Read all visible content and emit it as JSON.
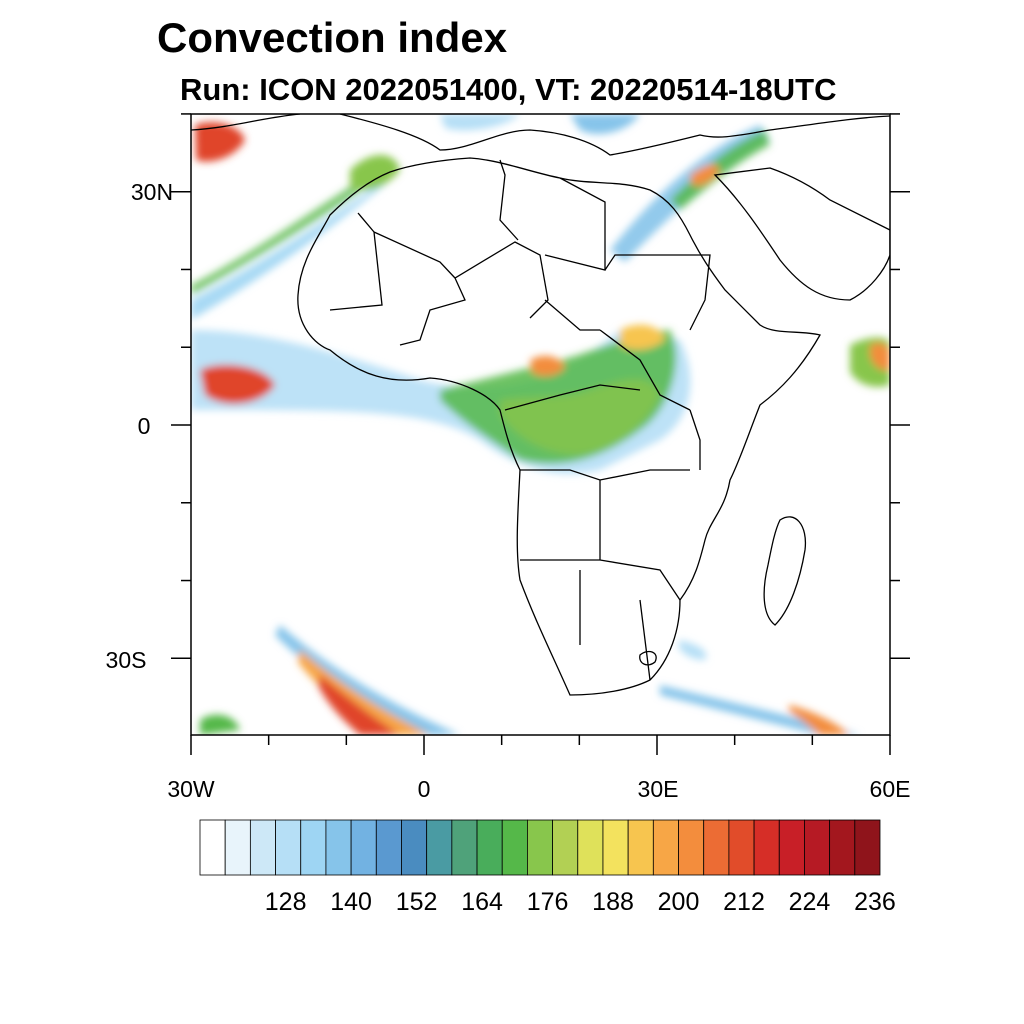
{
  "title": "Convection index",
  "subtitle": "Run: ICON 2022051400,  VT: 20220514-18UTC",
  "axes": {
    "lat_labels": [
      "30N",
      "0",
      "30S"
    ],
    "lon_labels": [
      "30W",
      "0",
      "30E",
      "60E"
    ]
  },
  "colorbar": {
    "labels": [
      "128",
      "140",
      "152",
      "164",
      "176",
      "188",
      "200",
      "212",
      "224",
      "236"
    ],
    "colors": [
      "#ffffff",
      "#e8f4fb",
      "#cde8f7",
      "#b6dff6",
      "#9ed5f3",
      "#86c4ea",
      "#72b2e2",
      "#5a99d0",
      "#4a8cc0",
      "#4a9ba3",
      "#4fa27a",
      "#49ad5b",
      "#55b849",
      "#88c64c",
      "#b2d054",
      "#dfe15a",
      "#f3e25e",
      "#f7c54f",
      "#f7a646",
      "#f38d3d",
      "#ec6c34",
      "#e14c2a",
      "#d62e27",
      "#c81f27",
      "#b61a24",
      "#a3171e",
      "#8f141b"
    ]
  },
  "map": {
    "coastline_color": "#000000",
    "high_color": "#e0442a",
    "mid_color": "#55b849",
    "low_color": "#86c4ea"
  }
}
